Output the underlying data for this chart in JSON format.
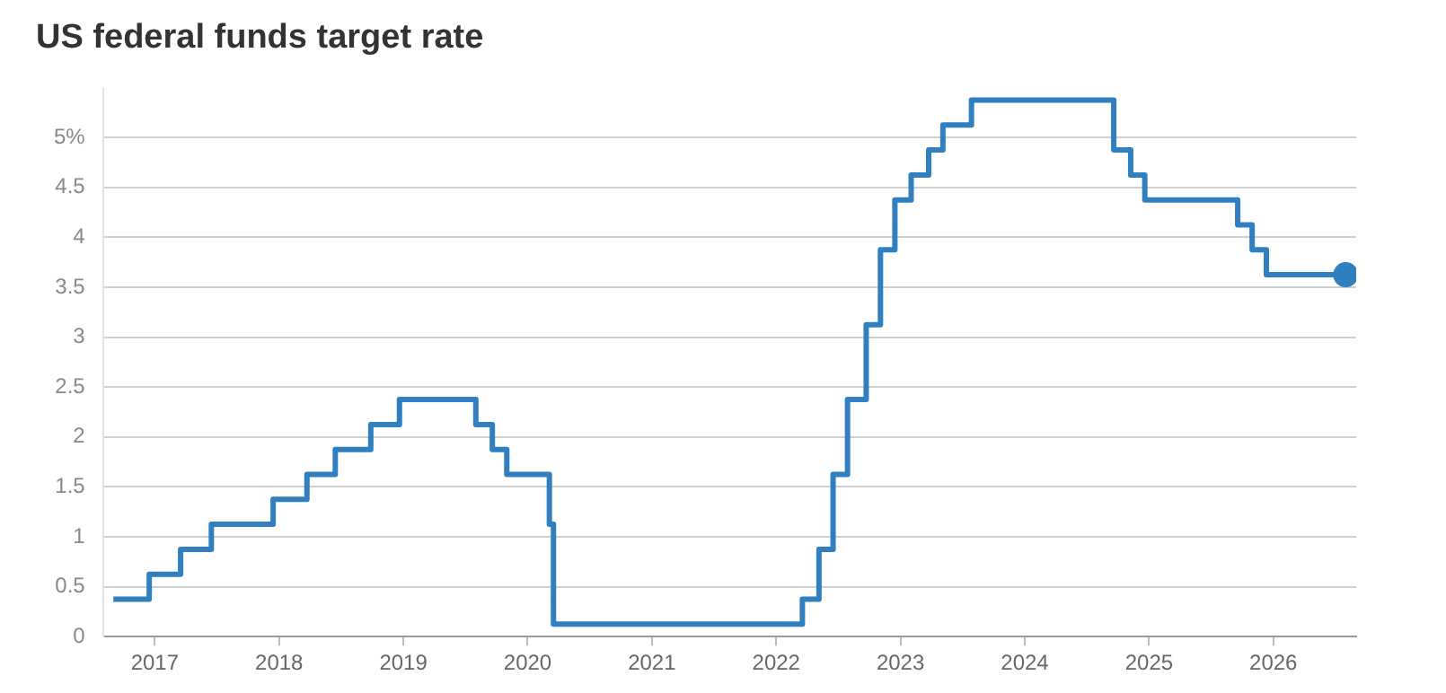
{
  "chart_data": {
    "type": "step",
    "title": "US federal funds target rate",
    "x": [
      "2016-09-01",
      "2016-12-15",
      "2017-03-16",
      "2017-06-15",
      "2017-12-14",
      "2018-03-22",
      "2018-06-14",
      "2018-09-27",
      "2018-12-20",
      "2019-08-01",
      "2019-09-19",
      "2019-10-31",
      "2020-03-04",
      "2020-03-16",
      "2022-03-17",
      "2022-05-05",
      "2022-06-16",
      "2022-07-28",
      "2022-09-22",
      "2022-11-03",
      "2022-12-15",
      "2023-02-02",
      "2023-03-23",
      "2023-05-04",
      "2023-07-27",
      "2024-09-19",
      "2024-11-08",
      "2024-12-19",
      "2025-09-18",
      "2025-10-30",
      "2025-12-11",
      "2026-07-31"
    ],
    "series": [
      {
        "color": "#2f7fc1",
        "values": [
          0.375,
          0.625,
          0.875,
          1.125,
          1.375,
          1.625,
          1.875,
          2.125,
          2.375,
          2.125,
          1.875,
          1.625,
          1.125,
          0.125,
          0.375,
          0.875,
          1.625,
          2.375,
          3.125,
          3.875,
          4.375,
          4.625,
          4.875,
          5.125,
          5.375,
          4.875,
          4.625,
          4.375,
          4.125,
          3.875,
          3.625,
          3.625
        ]
      }
    ],
    "xlim": [
      "2016-08-01",
      "2026-09-01"
    ],
    "xticks": [
      "2017",
      "2018",
      "2019",
      "2020",
      "2021",
      "2022",
      "2023",
      "2024",
      "2025",
      "2026"
    ],
    "ylim": [
      0,
      5.5
    ],
    "yticks": [
      0,
      0.5,
      1,
      1.5,
      2,
      2.5,
      3,
      3.5,
      4,
      4.5,
      {
        "value": 5,
        "label": "5%"
      }
    ],
    "grid": "y",
    "legend": false
  }
}
